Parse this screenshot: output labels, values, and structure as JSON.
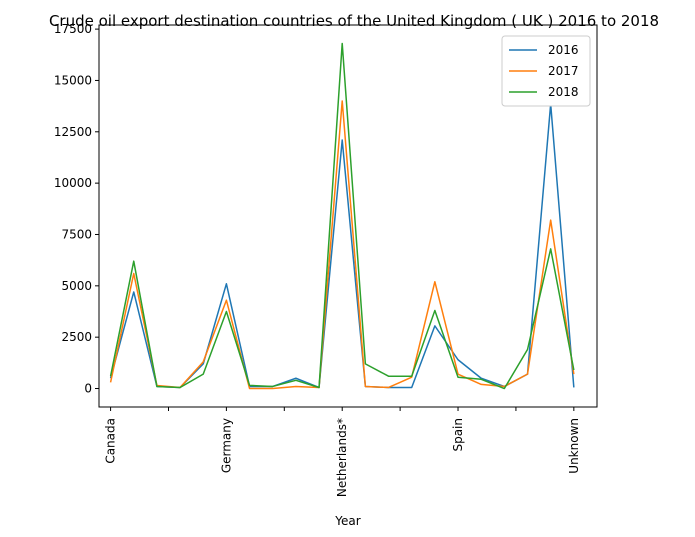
{
  "chart_data": {
    "type": "line",
    "title": "Crude oil export destination countries of the United Kingdom ( UK ) 2016 to 2018",
    "xlabel": "Year",
    "ylabel": "",
    "x_tick_labels": [
      "Canada",
      "",
      "Germany",
      "",
      "Netherlands*",
      "",
      "Spain",
      "",
      "Unknown"
    ],
    "x_tick_positions": [
      0,
      5,
      10,
      15,
      20,
      25,
      30,
      35,
      40
    ],
    "y_ticks": [
      0,
      2500,
      5000,
      7500,
      10000,
      12500,
      15000,
      17500
    ],
    "y_tick_labels": [
      "0",
      "2500",
      "5000",
      "7500",
      "10000",
      "12500",
      "15000",
      "17500"
    ],
    "xlim": [
      -1,
      42
    ],
    "ylim": [
      -900,
      17700
    ],
    "grid": false,
    "legend_position": "top-right",
    "series": [
      {
        "name": "2016",
        "color": "#1f77b4",
        "values": [
          500,
          4700,
          100,
          50,
          1200,
          5100,
          100,
          100,
          500,
          50,
          12100,
          100,
          50,
          50,
          3050,
          1400,
          500,
          100,
          700,
          13850,
          50
        ]
      },
      {
        "name": "2017",
        "color": "#ff7f0e",
        "values": [
          300,
          5600,
          150,
          50,
          1300,
          4300,
          0,
          0,
          100,
          50,
          14000,
          100,
          50,
          550,
          5200,
          700,
          200,
          100,
          700,
          8200,
          700
        ]
      },
      {
        "name": "2018",
        "color": "#2ca02c",
        "values": [
          600,
          6200,
          100,
          50,
          700,
          3750,
          150,
          100,
          400,
          50,
          16800,
          1200,
          600,
          600,
          3800,
          550,
          450,
          0,
          1900,
          6800,
          900
        ]
      }
    ]
  }
}
